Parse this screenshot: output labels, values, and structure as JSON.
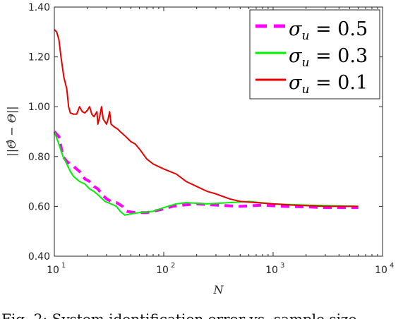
{
  "chart_data": {
    "type": "line",
    "xscale": "log",
    "xlim": [
      10,
      10000
    ],
    "ylim": [
      0.4,
      1.4
    ],
    "xlabel": "N",
    "ylabel": "||Θ̂ − Θ||",
    "yticks": [
      "0.40",
      "0.60",
      "0.80",
      "1.00",
      "1.20",
      "1.40"
    ],
    "xticks": [
      {
        "base": "10",
        "exp": "1"
      },
      {
        "base": "10",
        "exp": "2"
      },
      {
        "base": "10",
        "exp": "3"
      },
      {
        "base": "10",
        "exp": "4"
      }
    ],
    "grid": false,
    "legend_position": "top-right",
    "series": [
      {
        "name": "σu = 0.5",
        "legend": {
          "symbol": "σ",
          "sub": "u",
          "rest": " = 0.5"
        },
        "color": "#ff00ff",
        "style": "dashed",
        "points": [
          [
            10,
            0.9
          ],
          [
            11,
            0.88
          ],
          [
            12,
            0.8
          ],
          [
            13,
            0.78
          ],
          [
            15,
            0.76
          ],
          [
            17,
            0.74
          ],
          [
            19,
            0.71
          ],
          [
            21,
            0.7
          ],
          [
            23,
            0.68
          ],
          [
            25,
            0.67
          ],
          [
            27,
            0.65
          ],
          [
            30,
            0.63
          ],
          [
            33,
            0.62
          ],
          [
            37,
            0.615
          ],
          [
            42,
            0.6
          ],
          [
            46,
            0.58
          ],
          [
            55,
            0.575
          ],
          [
            70,
            0.575
          ],
          [
            80,
            0.58
          ],
          [
            100,
            0.59
          ],
          [
            120,
            0.6
          ],
          [
            150,
            0.605
          ],
          [
            200,
            0.61
          ],
          [
            300,
            0.605
          ],
          [
            500,
            0.6
          ],
          [
            800,
            0.605
          ],
          [
            1200,
            0.6
          ],
          [
            2000,
            0.598
          ],
          [
            3000,
            0.595
          ],
          [
            6000,
            0.595
          ]
        ]
      },
      {
        "name": "σu = 0.3",
        "legend": {
          "symbol": "σ",
          "sub": "u",
          "rest": " = 0.3"
        },
        "color": "#00ee00",
        "style": "solid",
        "points": [
          [
            10,
            0.9
          ],
          [
            11,
            0.85
          ],
          [
            12,
            0.8
          ],
          [
            13,
            0.77
          ],
          [
            14,
            0.74
          ],
          [
            15,
            0.72
          ],
          [
            17,
            0.7
          ],
          [
            19,
            0.69
          ],
          [
            21,
            0.67
          ],
          [
            23,
            0.66
          ],
          [
            26,
            0.64
          ],
          [
            29,
            0.62
          ],
          [
            33,
            0.61
          ],
          [
            37,
            0.6
          ],
          [
            40,
            0.58
          ],
          [
            44,
            0.565
          ],
          [
            50,
            0.57
          ],
          [
            60,
            0.575
          ],
          [
            80,
            0.58
          ],
          [
            100,
            0.595
          ],
          [
            130,
            0.61
          ],
          [
            160,
            0.615
          ],
          [
            250,
            0.61
          ],
          [
            400,
            0.615
          ],
          [
            600,
            0.62
          ],
          [
            1000,
            0.61
          ],
          [
            2000,
            0.605
          ],
          [
            6000,
            0.6
          ]
        ]
      },
      {
        "name": "σu = 0.1",
        "legend": {
          "symbol": "σ",
          "sub": "u",
          "rest": " = 0.1"
        },
        "color": "#e80000",
        "style": "solid",
        "points": [
          [
            10,
            1.31
          ],
          [
            10.5,
            1.3
          ],
          [
            11,
            1.27
          ],
          [
            11.5,
            1.2
          ],
          [
            12.2,
            1.12
          ],
          [
            13,
            1.07
          ],
          [
            13.5,
            1.0
          ],
          [
            14,
            0.975
          ],
          [
            15,
            0.97
          ],
          [
            16,
            0.97
          ],
          [
            17,
            1.0
          ],
          [
            18,
            0.98
          ],
          [
            19,
            0.975
          ],
          [
            20,
            0.985
          ],
          [
            21,
            1.0
          ],
          [
            22,
            0.97
          ],
          [
            23,
            0.96
          ],
          [
            24.5,
            0.98
          ],
          [
            25,
            0.93
          ],
          [
            26,
            0.96
          ],
          [
            27,
            1.0
          ],
          [
            28,
            0.95
          ],
          [
            30,
            0.93
          ],
          [
            31,
            0.95
          ],
          [
            32,
            0.98
          ],
          [
            33,
            0.93
          ],
          [
            35,
            0.92
          ],
          [
            38,
            0.91
          ],
          [
            40,
            0.9
          ],
          [
            45,
            0.88
          ],
          [
            50,
            0.86
          ],
          [
            55,
            0.85
          ],
          [
            60,
            0.83
          ],
          [
            70,
            0.79
          ],
          [
            80,
            0.77
          ],
          [
            100,
            0.75
          ],
          [
            130,
            0.73
          ],
          [
            160,
            0.7
          ],
          [
            200,
            0.68
          ],
          [
            250,
            0.66
          ],
          [
            300,
            0.65
          ],
          [
            400,
            0.63
          ],
          [
            500,
            0.62
          ],
          [
            700,
            0.615
          ],
          [
            1000,
            0.61
          ],
          [
            1500,
            0.605
          ],
          [
            3000,
            0.6
          ],
          [
            6000,
            0.6
          ]
        ]
      }
    ]
  }
}
